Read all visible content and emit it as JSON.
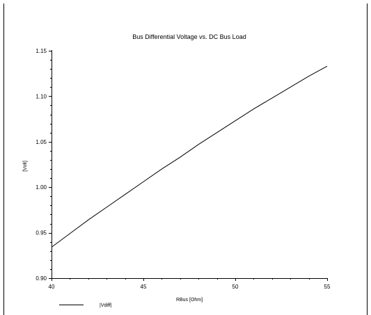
{
  "chart_data": {
    "type": "line",
    "title": "Bus Differential Voltage vs. DC Bus Load",
    "xlabel": "RBus [Ohm]",
    "ylabel": "[Volt]",
    "xlim": [
      40,
      55
    ],
    "ylim": [
      0.9,
      1.15
    ],
    "x_ticks": [
      "40",
      "45",
      "50",
      "55"
    ],
    "y_ticks": [
      "0.90",
      "0.95",
      "1.00",
      "1.05",
      "1.10",
      "1.15"
    ],
    "grid": false,
    "legend_position": "bottom-left",
    "series": [
      {
        "name": "|Vdiff|",
        "color": "#000000",
        "x": [
          40,
          41,
          42,
          43,
          44,
          45,
          46,
          47,
          48,
          49,
          50,
          51,
          52,
          53,
          54,
          55
        ],
        "y": [
          0.934,
          0.949,
          0.964,
          0.978,
          0.992,
          1.006,
          1.02,
          1.033,
          1.047,
          1.06,
          1.073,
          1.086,
          1.098,
          1.11,
          1.122,
          1.133
        ]
      }
    ]
  }
}
